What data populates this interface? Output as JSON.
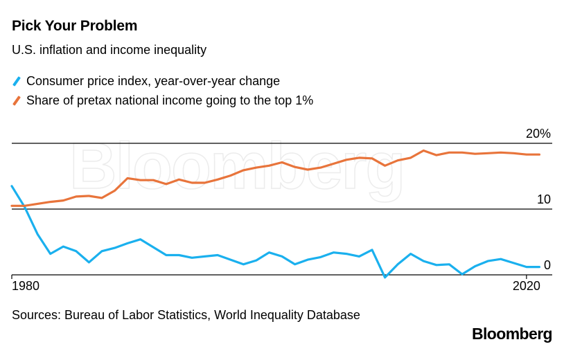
{
  "header": {
    "title": "Pick Your Problem",
    "subtitle": "U.S. inflation and income inequality"
  },
  "legend": [
    {
      "label": "Consumer price index, year-over-year change",
      "color": "#1ab0ee"
    },
    {
      "label": "Share of pretax national income going to the top 1%",
      "color": "#e8743b"
    }
  ],
  "footer": {
    "source": "Sources: Bureau of Labor Statistics, World Inequality Database",
    "brand": "Bloomberg"
  },
  "watermark": "Bloomberg",
  "chart_data": {
    "type": "line",
    "title": "Pick Your Problem",
    "subtitle": "U.S. inflation and income inequality",
    "xlim": [
      1980,
      2022
    ],
    "ylim": [
      0,
      20
    ],
    "y_ticks": [
      {
        "value": 20,
        "label": "20%"
      },
      {
        "value": 10,
        "label": "10"
      },
      {
        "value": 0,
        "label": "0"
      }
    ],
    "x_tick_labels": [
      {
        "value": 1980,
        "label": "1980"
      },
      {
        "value": 2020,
        "label": "2020"
      }
    ],
    "grid": "horizontal",
    "legend_position": "top-left",
    "series": [
      {
        "name": "Consumer price index, year-over-year change",
        "color": "#1ab0ee",
        "x": [
          1980,
          1981,
          1982,
          1983,
          1984,
          1985,
          1986,
          1987,
          1988,
          1989,
          1990,
          1991,
          1992,
          1993,
          1994,
          1995,
          1996,
          1997,
          1998,
          1999,
          2000,
          2001,
          2002,
          2003,
          2004,
          2005,
          2006,
          2007,
          2008,
          2009,
          2010,
          2011,
          2012,
          2013,
          2014,
          2015,
          2016,
          2017,
          2018,
          2019,
          2020,
          2021
        ],
        "values": [
          13.5,
          10.3,
          6.2,
          3.2,
          4.3,
          3.6,
          1.9,
          3.6,
          4.1,
          4.8,
          5.4,
          4.2,
          3.0,
          3.0,
          2.6,
          2.8,
          3.0,
          2.3,
          1.6,
          2.2,
          3.4,
          2.8,
          1.6,
          2.3,
          2.7,
          3.4,
          3.2,
          2.8,
          3.8,
          -0.4,
          1.6,
          3.2,
          2.1,
          1.5,
          1.6,
          0.1,
          1.3,
          2.1,
          2.4,
          1.8,
          1.2,
          1.2
        ]
      },
      {
        "name": "Share of pretax national income going to the top 1%",
        "color": "#e8743b",
        "x": [
          1980,
          1981,
          1982,
          1983,
          1984,
          1985,
          1986,
          1987,
          1988,
          1989,
          1990,
          1991,
          1992,
          1993,
          1994,
          1995,
          1996,
          1997,
          1998,
          1999,
          2000,
          2001,
          2002,
          2003,
          2004,
          2005,
          2006,
          2007,
          2008,
          2009,
          2010,
          2011,
          2012,
          2013,
          2014,
          2015,
          2016,
          2017,
          2018,
          2019,
          2020,
          2021
        ],
        "values": [
          10.5,
          10.5,
          10.8,
          11.1,
          11.3,
          11.9,
          12.0,
          11.7,
          12.8,
          14.7,
          14.4,
          14.4,
          13.8,
          14.5,
          14.0,
          14.0,
          14.5,
          15.1,
          15.9,
          16.3,
          16.6,
          17.1,
          16.4,
          16.0,
          16.3,
          16.9,
          17.5,
          17.8,
          17.7,
          16.6,
          17.4,
          17.8,
          18.9,
          18.2,
          18.6,
          18.6,
          18.4,
          18.5,
          18.6,
          18.5,
          18.3,
          18.3
        ]
      }
    ]
  }
}
